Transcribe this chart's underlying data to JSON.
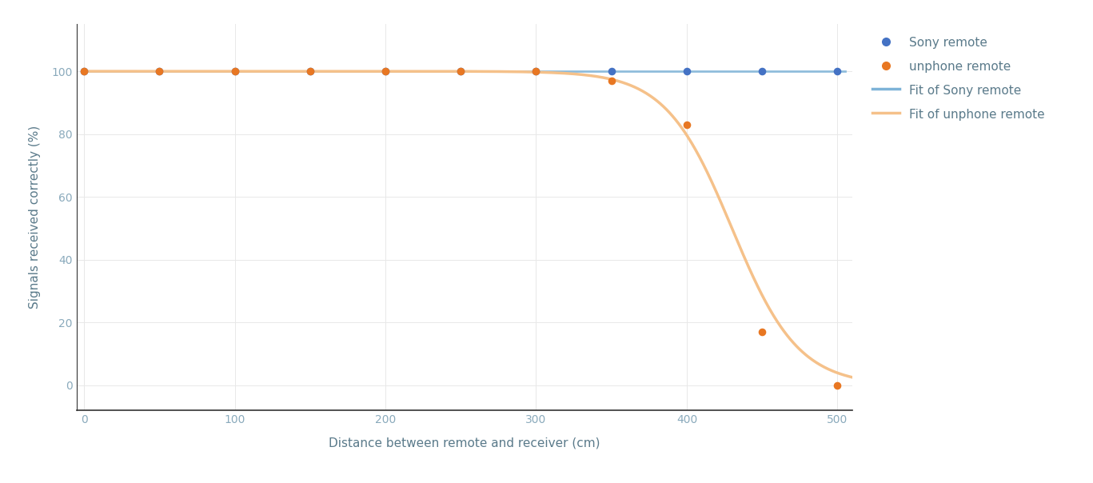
{
  "title": "",
  "xlabel": "Distance between remote and receiver (cm)",
  "ylabel": "Signals received correctly (%)",
  "xlim": [
    -5,
    510
  ],
  "ylim": [
    -8,
    115
  ],
  "xticks": [
    0,
    100,
    200,
    300,
    400,
    500
  ],
  "yticks": [
    0,
    20,
    40,
    60,
    80,
    100
  ],
  "sony_x": [
    0,
    50,
    100,
    150,
    200,
    250,
    300,
    350,
    400,
    450,
    500
  ],
  "sony_y": [
    100,
    100,
    100,
    100,
    100,
    100,
    100,
    100,
    100,
    100,
    100
  ],
  "unphone_x": [
    0,
    50,
    100,
    150,
    200,
    250,
    300,
    350,
    400,
    450,
    500
  ],
  "unphone_y": [
    100,
    100,
    100,
    100,
    100,
    100,
    100,
    97,
    83,
    17,
    0
  ],
  "sony_color": "#4472c4",
  "unphone_color": "#e87722",
  "sony_fit_color": "#7eb3d8",
  "unphone_fit_color": "#f5c18a",
  "background_color": "#ffffff",
  "grid_color": "#e8e8e8",
  "label_color": "#5a7a8a",
  "tick_color": "#8aaabc",
  "axis_color": "#333333",
  "legend_labels": [
    "Sony remote",
    "unphone remote",
    "Fit of Sony remote",
    "Fit of unphone remote"
  ],
  "figsize": [
    13.67,
    6.04
  ],
  "dpi": 100,
  "fit_x0": 430,
  "fit_k": 22
}
